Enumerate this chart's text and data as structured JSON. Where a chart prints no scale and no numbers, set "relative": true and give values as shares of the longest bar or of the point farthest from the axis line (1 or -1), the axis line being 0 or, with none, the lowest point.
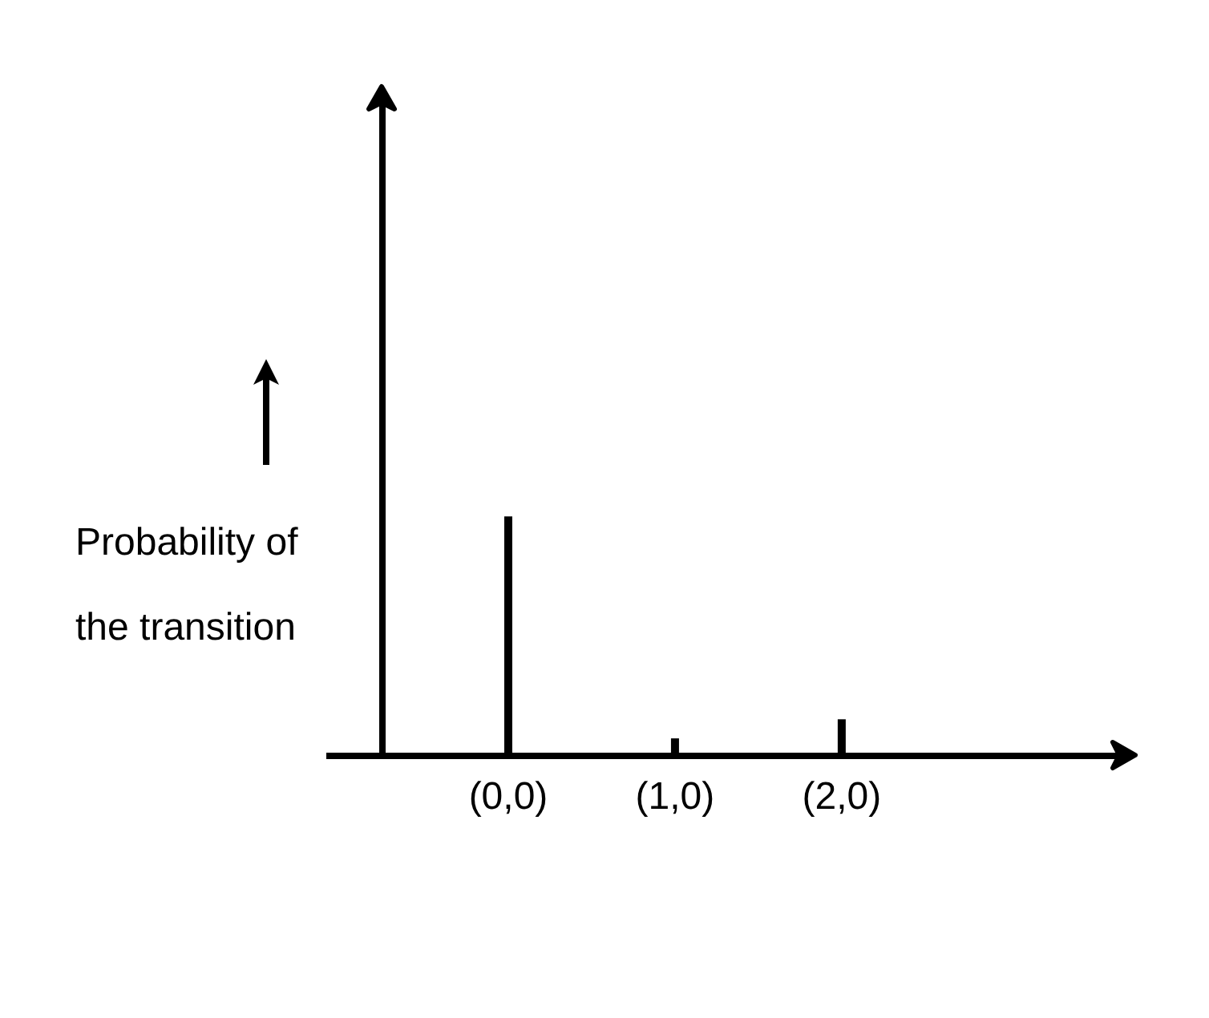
{
  "chart_data": {
    "type": "bar",
    "relative": true,
    "ylabel": "Probability of the transition",
    "categories": [
      "(0,0)",
      "(1,0)",
      "(2,0)"
    ],
    "values": [
      1,
      0.07,
      0.15
    ],
    "color": "#000000"
  }
}
